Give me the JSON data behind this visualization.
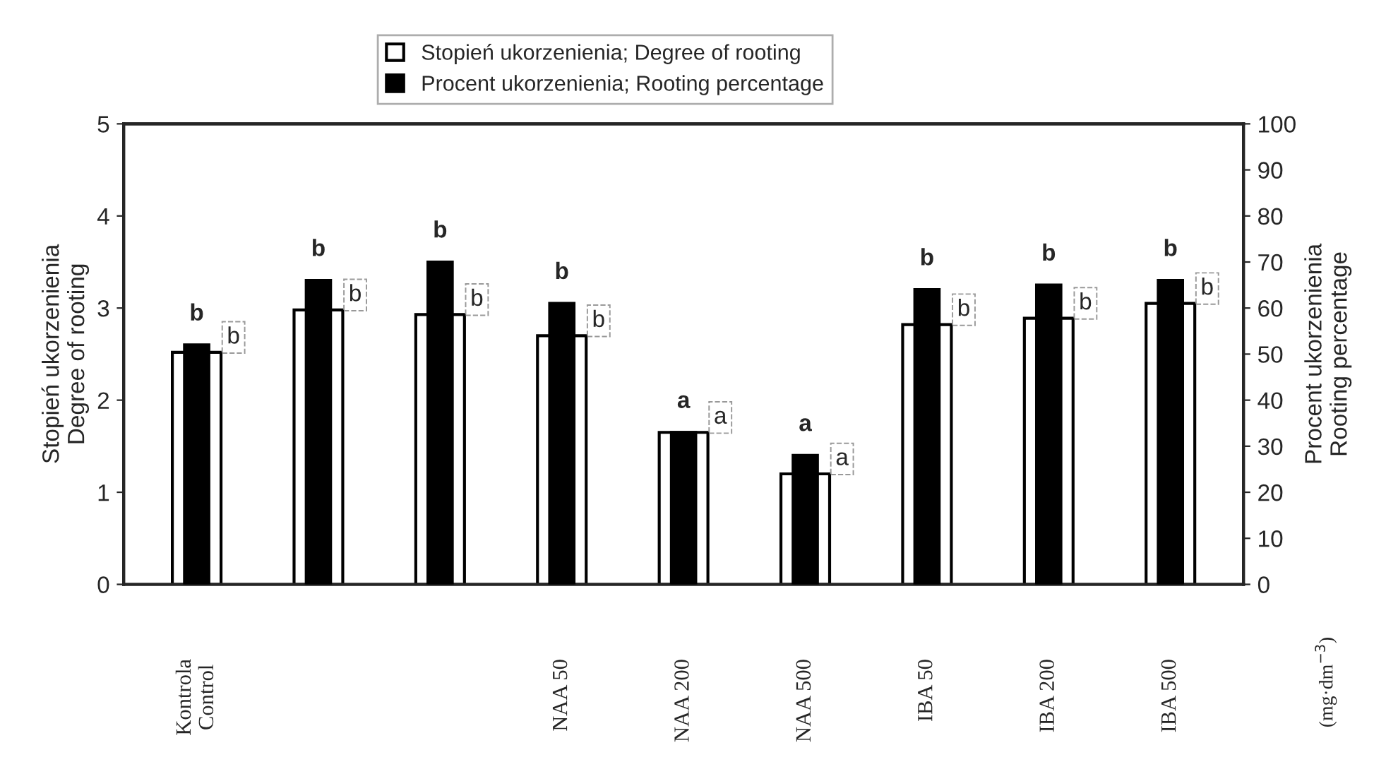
{
  "chart_data": {
    "type": "bar",
    "categories": [
      "Kontrola\nControl",
      null,
      null,
      "NAA 50",
      "NAA 200",
      "NAA 500",
      "IBA 50",
      "IBA 200",
      "IBA 500"
    ],
    "series": [
      {
        "name": "Stopień ukorzenienia; Degree of rooting",
        "color": "#ffffff",
        "values": [
          2.52,
          2.98,
          2.93,
          2.7,
          1.65,
          1.2,
          2.82,
          2.89,
          3.05
        ],
        "value_labels": [
          "b",
          "b",
          "b",
          "b",
          "a",
          "a",
          "b",
          "b",
          "b"
        ]
      },
      {
        "name": "Procent ukorzenienia; Rooting percentage",
        "color": "#000000",
        "axis": "y2",
        "values": [
          52,
          66,
          70,
          61,
          33,
          28,
          64,
          65,
          66
        ],
        "value_labels": [
          "b",
          "b",
          "b",
          "b",
          "a",
          "a",
          "b",
          "b",
          "b"
        ]
      }
    ],
    "ylabel": "Stopień ukorzenienia\nDegree of rooting",
    "y2label": "Procent ukorzenienia\nRooting percentage",
    "ylim": [
      0,
      5
    ],
    "yticks": [
      0,
      1,
      2,
      3,
      4,
      5
    ],
    "y2lim": [
      0,
      100
    ],
    "y2ticks": [
      0,
      10,
      20,
      30,
      40,
      50,
      60,
      70,
      80,
      90,
      100
    ],
    "annotations": [
      "(mg·dm$^{−3}$)"
    ],
    "legend": "top",
    "grid": false
  }
}
